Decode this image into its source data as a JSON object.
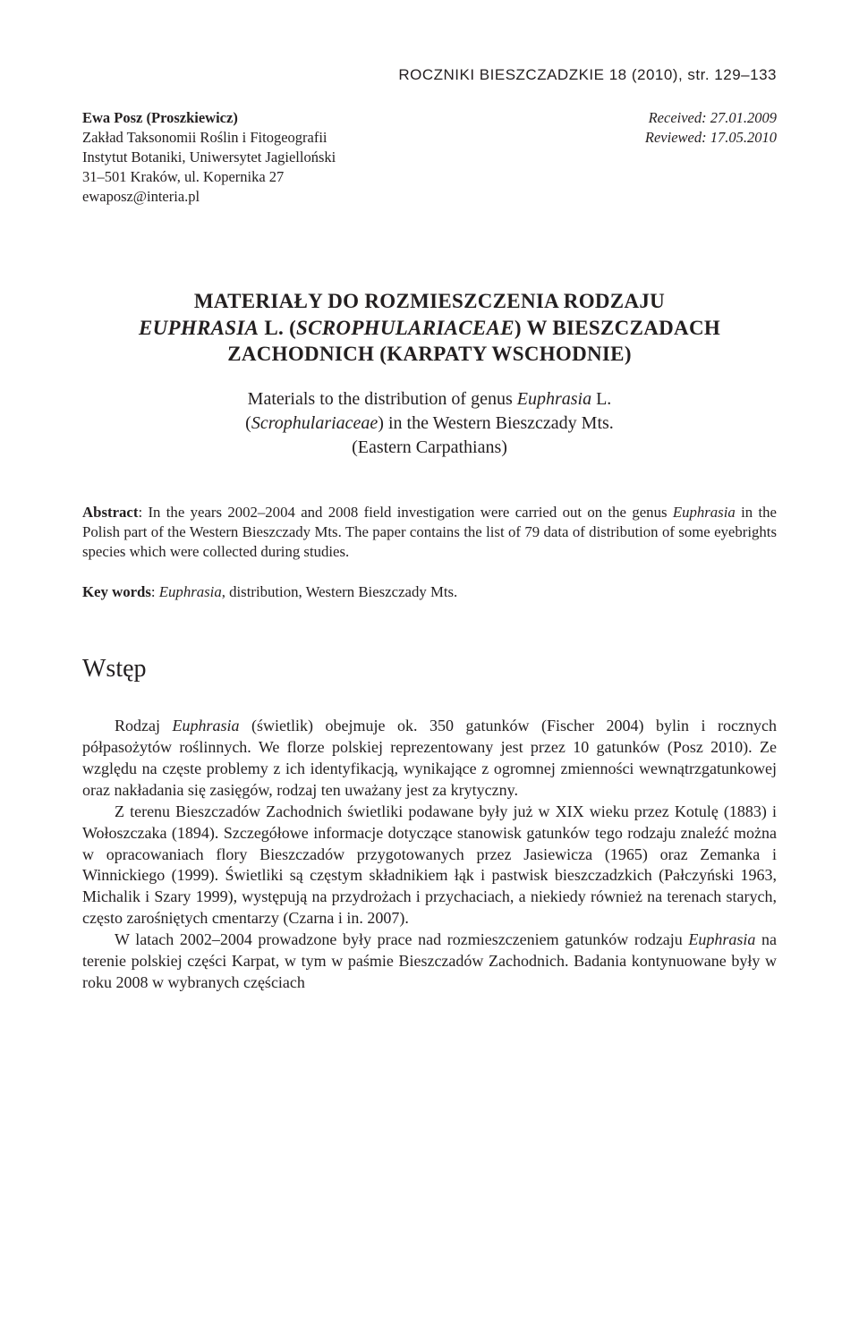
{
  "running_header": "ROCZNIKI BIESZCZADZKIE 18 (2010), str. 129–133",
  "meta": {
    "author": "Ewa Posz (Proszkiewicz)",
    "affiliation_lines": [
      "Zakład Taksonomii Roślin i Fitogeografii",
      "Instytut Botaniki, Uniwersytet Jagielloński",
      "31–501 Kraków, ul. Kopernika 27",
      "ewaposz@interia.pl"
    ],
    "received_label": "Received:",
    "received_value": "27.01.2009",
    "reviewed_label": "Reviewed:",
    "reviewed_value": "17.05.2010"
  },
  "title": {
    "pl_line1": "MATERIAŁY DO ROZMIESZCZENIA RODZAJU",
    "pl_line2_pre": "EUPHRASIA",
    "pl_line2_mid": " L. (",
    "pl_line2_fam": "SCROPHULARIACEAE",
    "pl_line2_post": ") W BIESZCZADACH",
    "pl_line3": "ZACHODNICH (KARPATY WSCHODNIE)",
    "en_line1_pre": "Materials to the distribution of genus ",
    "en_line1_it": "Euphrasia",
    "en_line1_post": " L.",
    "en_line2_pre": "(",
    "en_line2_it": "Scrophulariaceae",
    "en_line2_post": ") in the Western Bieszczady Mts.",
    "en_line3": "(Eastern Carpathians)"
  },
  "abstract": {
    "label": "Abstract",
    "pre": ": In the years 2002–2004 and 2008 field investigation were carried out on the genus ",
    "it": "Euphrasia",
    "post": " in the Polish part of the Western Bieszczady Mts. The paper contains the list of 79 data of distribution of some eyebrights species which were collected during studies."
  },
  "keywords": {
    "label": "Key words",
    "pre": ": ",
    "it": "Euphrasia",
    "post": ", distribution, Western Bieszczady Mts."
  },
  "section_heading": "Wstęp",
  "body": {
    "p1_pre": "Rodzaj ",
    "p1_it": "Euphrasia",
    "p1_post": " (świetlik) obejmuje ok. 350 gatunków (Fischer 2004) bylin i rocznych półpasożytów roślinnych. We florze polskiej reprezentowany jest przez 10 gatunków (Posz 2010). Ze względu na częste problemy z ich identyfikacją, wynikające z ogromnej zmienności wewnątrzgatunkowej oraz nakładania się zasięgów, rodzaj ten uważany jest za krytyczny.",
    "p2": "Z terenu Bieszczadów Zachodnich świetliki podawane były już w XIX wieku przez Kotulę (1883) i Wołoszczaka (1894). Szczegółowe informacje dotyczące stanowisk gatunków tego rodzaju znaleźć można w opracowaniach flory Bieszczadów przygotowanych przez Jasiewicza (1965) oraz Zemanka i Winnickiego (1999). Świetliki są częstym składnikiem łąk i pastwisk bieszczadzkich (Pałczyński 1963, Michalik i Szary 1999), występują na przydrożach i przychaciach, a niekiedy również na terenach starych, często zarośniętych cmentarzy (Czarna i in. 2007).",
    "p3_pre": "W latach 2002–2004 prowadzone były prace nad rozmieszczeniem gatunków rodzaju ",
    "p3_it": "Euphrasia",
    "p3_post": " na terenie polskiej części Karpat, w tym w paśmie Bieszczadów Zachodnich. Badania kontynuowane były w roku 2008 w wybranych częściach"
  },
  "colors": {
    "text": "#231f20",
    "background": "#ffffff"
  },
  "fonts": {
    "serif": "Minion Pro / Garamond",
    "sans": "Myriad Pro / Helvetica",
    "running_header_size": 17,
    "meta_size": 16.5,
    "title_pl_size": 23,
    "title_en_size": 20,
    "abstract_size": 16.8,
    "heading_size": 28,
    "body_size": 18
  }
}
